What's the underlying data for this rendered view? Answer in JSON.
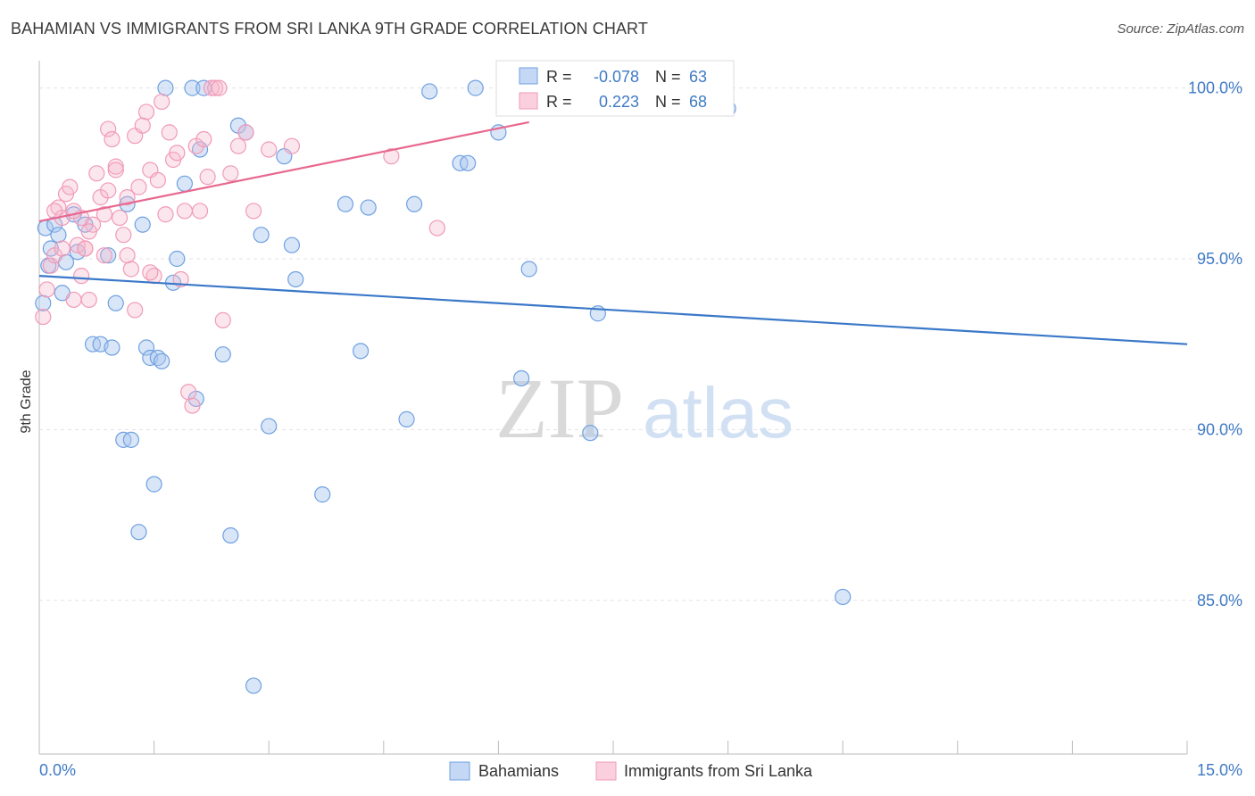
{
  "title": "BAHAMIAN VS IMMIGRANTS FROM SRI LANKA 9TH GRADE CORRELATION CHART",
  "source": "Source: ZipAtlas.com",
  "watermark": {
    "zip": "ZIP",
    "atlas": "atlas"
  },
  "legend_box": [
    {
      "r_label": "R =",
      "r_value": "-0.078",
      "n_label": "N =",
      "n_value": "63",
      "color": "#6fa0e0"
    },
    {
      "r_label": "R =",
      "r_value": "0.223",
      "n_label": "N =",
      "n_value": "68",
      "color": "#f09ab8"
    }
  ],
  "colors": {
    "blue": "#3a78c8",
    "blue_fill": "#aac8ef",
    "pink": "#e8688f",
    "pink_fill": "#f6b8cc"
  },
  "chart_data": {
    "type": "scatter",
    "title": "BAHAMIAN VS IMMIGRANTS FROM SRI LANKA 9TH GRADE CORRELATION CHART",
    "xlabel": "",
    "ylabel": "9th Grade",
    "xlim": [
      0,
      15
    ],
    "ylim": [
      80.5,
      100.8
    ],
    "x_ticks": [
      "0.0%",
      "15.0%"
    ],
    "y_ticks": [
      {
        "value": 100,
        "label": "100.0%"
      },
      {
        "value": 95,
        "label": "95.0%"
      },
      {
        "value": 90,
        "label": "90.0%"
      },
      {
        "value": 85,
        "label": "85.0%"
      }
    ],
    "grid": true,
    "legend_position": "bottom",
    "series": [
      {
        "name": "Bahamians",
        "color": "#3a78c8",
        "trend": {
          "x": [
            0,
            15
          ],
          "y": [
            94.5,
            92.5
          ]
        },
        "points": [
          [
            0.05,
            93.7
          ],
          [
            0.08,
            95.9
          ],
          [
            0.12,
            94.8
          ],
          [
            0.2,
            96.0
          ],
          [
            0.25,
            95.7
          ],
          [
            0.3,
            94.0
          ],
          [
            0.35,
            94.9
          ],
          [
            0.45,
            96.3
          ],
          [
            0.5,
            95.2
          ],
          [
            0.6,
            96.0
          ],
          [
            0.7,
            92.5
          ],
          [
            0.8,
            92.5
          ],
          [
            0.9,
            95.1
          ],
          [
            0.95,
            92.4
          ],
          [
            1.0,
            93.7
          ],
          [
            1.1,
            89.7
          ],
          [
            1.2,
            89.7
          ],
          [
            1.15,
            96.6
          ],
          [
            1.3,
            87.0
          ],
          [
            1.35,
            96.0
          ],
          [
            1.4,
            92.4
          ],
          [
            1.45,
            92.1
          ],
          [
            1.5,
            88.4
          ],
          [
            1.55,
            92.1
          ],
          [
            1.6,
            92.0
          ],
          [
            1.65,
            100.0
          ],
          [
            1.75,
            94.3
          ],
          [
            1.8,
            95.0
          ],
          [
            1.9,
            97.2
          ],
          [
            2.0,
            100.0
          ],
          [
            2.05,
            90.9
          ],
          [
            2.1,
            98.2
          ],
          [
            2.15,
            100.0
          ],
          [
            2.4,
            92.2
          ],
          [
            2.5,
            86.9
          ],
          [
            2.6,
            98.9
          ],
          [
            2.7,
            98.7
          ],
          [
            2.8,
            82.5
          ],
          [
            2.9,
            95.7
          ],
          [
            3.0,
            90.1
          ],
          [
            3.2,
            98.0
          ],
          [
            3.3,
            95.4
          ],
          [
            3.35,
            94.4
          ],
          [
            3.7,
            88.1
          ],
          [
            4.0,
            96.6
          ],
          [
            4.2,
            92.3
          ],
          [
            4.3,
            96.5
          ],
          [
            4.8,
            90.3
          ],
          [
            4.9,
            96.6
          ],
          [
            5.1,
            99.9
          ],
          [
            5.5,
            97.8
          ],
          [
            5.6,
            97.8
          ],
          [
            5.7,
            100.0
          ],
          [
            6.0,
            98.7
          ],
          [
            6.3,
            91.5
          ],
          [
            6.4,
            94.7
          ],
          [
            7.2,
            89.9
          ],
          [
            7.3,
            93.4
          ],
          [
            7.6,
            100.0
          ],
          [
            8.6,
            99.8
          ],
          [
            9.0,
            99.4
          ],
          [
            10.5,
            85.1
          ],
          [
            0.15,
            95.3
          ]
        ]
      },
      {
        "name": "Immigrants from Sri Lanka",
        "color": "#e8688f",
        "trend": {
          "x": [
            0,
            6.4
          ],
          "y": [
            96.1,
            99.0
          ]
        },
        "points": [
          [
            0.05,
            93.3
          ],
          [
            0.1,
            94.1
          ],
          [
            0.15,
            94.8
          ],
          [
            0.2,
            95.1
          ],
          [
            0.25,
            96.5
          ],
          [
            0.3,
            96.2
          ],
          [
            0.35,
            96.9
          ],
          [
            0.4,
            97.1
          ],
          [
            0.45,
            93.8
          ],
          [
            0.5,
            95.4
          ],
          [
            0.55,
            96.2
          ],
          [
            0.6,
            95.3
          ],
          [
            0.65,
            93.8
          ],
          [
            0.7,
            96.0
          ],
          [
            0.75,
            97.5
          ],
          [
            0.8,
            96.8
          ],
          [
            0.85,
            96.3
          ],
          [
            0.9,
            98.8
          ],
          [
            0.95,
            98.5
          ],
          [
            1.0,
            97.7
          ],
          [
            1.05,
            96.2
          ],
          [
            1.1,
            95.7
          ],
          [
            1.15,
            95.1
          ],
          [
            1.2,
            94.7
          ],
          [
            1.25,
            98.6
          ],
          [
            1.3,
            97.1
          ],
          [
            1.35,
            98.9
          ],
          [
            1.4,
            99.3
          ],
          [
            1.45,
            97.6
          ],
          [
            1.5,
            94.5
          ],
          [
            1.55,
            97.3
          ],
          [
            1.6,
            99.6
          ],
          [
            1.65,
            96.3
          ],
          [
            1.7,
            98.7
          ],
          [
            1.75,
            97.9
          ],
          [
            1.8,
            98.1
          ],
          [
            1.85,
            94.4
          ],
          [
            1.9,
            96.4
          ],
          [
            1.95,
            91.1
          ],
          [
            2.0,
            90.7
          ],
          [
            2.05,
            98.3
          ],
          [
            2.1,
            96.4
          ],
          [
            2.15,
            98.5
          ],
          [
            2.2,
            97.4
          ],
          [
            2.25,
            100.0
          ],
          [
            2.3,
            100.0
          ],
          [
            2.35,
            100.0
          ],
          [
            2.4,
            93.2
          ],
          [
            2.5,
            97.5
          ],
          [
            2.6,
            98.3
          ],
          [
            2.7,
            98.7
          ],
          [
            2.8,
            96.4
          ],
          [
            3.0,
            98.2
          ],
          [
            3.3,
            98.3
          ],
          [
            4.6,
            98.0
          ],
          [
            5.2,
            95.9
          ],
          [
            0.3,
            95.3
          ],
          [
            0.55,
            94.5
          ],
          [
            0.85,
            95.1
          ],
          [
            1.25,
            93.5
          ],
          [
            0.2,
            96.4
          ],
          [
            0.65,
            95.8
          ],
          [
            1.0,
            97.6
          ],
          [
            1.45,
            94.6
          ],
          [
            0.45,
            96.4
          ],
          [
            0.6,
            95.3
          ],
          [
            0.9,
            97.0
          ],
          [
            1.15,
            96.8
          ]
        ]
      }
    ]
  },
  "legend_bottom": [
    {
      "label": "Bahamians",
      "color": "#6fa0e0"
    },
    {
      "label": "Immigrants from Sri Lanka",
      "color": "#f09ab8"
    }
  ]
}
